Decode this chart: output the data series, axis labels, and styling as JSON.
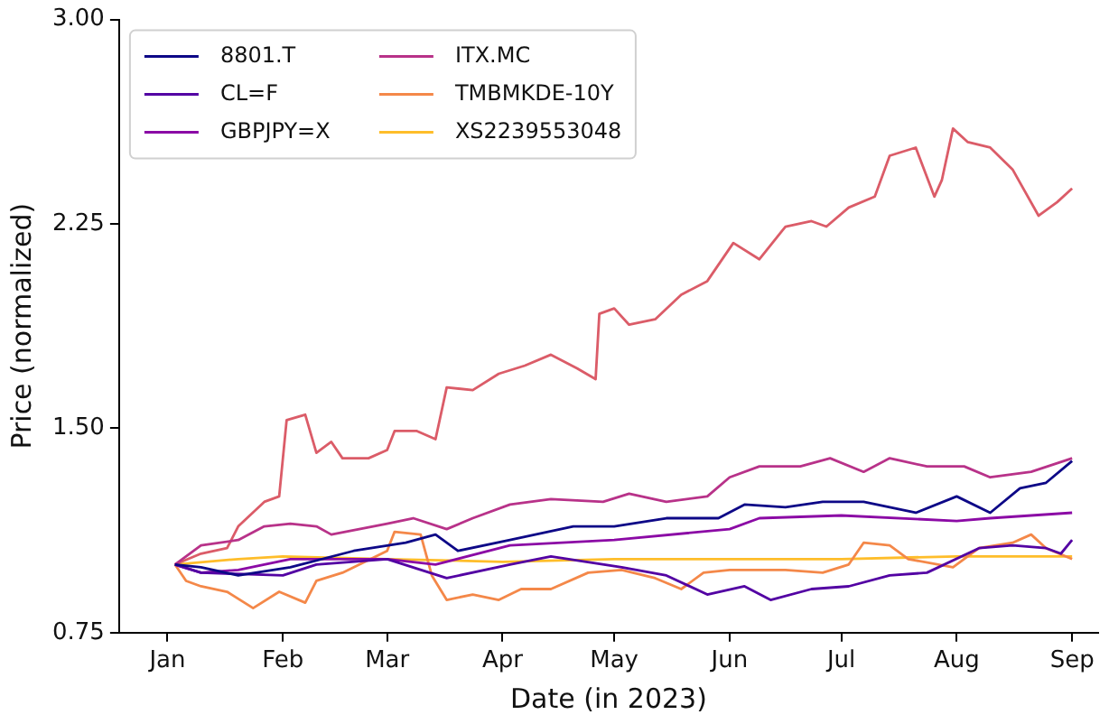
{
  "chart_data": {
    "type": "line",
    "xlabel": "Date (in 2023)",
    "ylabel": "Price (normalized)",
    "xlim": [
      "2022-12-19",
      "2023-09-08"
    ],
    "xticks": [
      {
        "value": "2023-01-01",
        "label": "Jan"
      },
      {
        "value": "2023-02-01",
        "label": "Feb"
      },
      {
        "value": "2023-03-01",
        "label": "Mar"
      },
      {
        "value": "2023-04-01",
        "label": "Apr"
      },
      {
        "value": "2023-05-01",
        "label": "May"
      },
      {
        "value": "2023-06-01",
        "label": "Jun"
      },
      {
        "value": "2023-07-01",
        "label": "Jul"
      },
      {
        "value": "2023-08-01",
        "label": "Aug"
      },
      {
        "value": "2023-09-01",
        "label": "Sep"
      }
    ],
    "ylim": [
      0.75,
      3.0
    ],
    "yticks": [
      {
        "value": 0.75,
        "label": "0.75"
      },
      {
        "value": 1.5,
        "label": "1.50"
      },
      {
        "value": 2.25,
        "label": "2.25"
      },
      {
        "value": 3.0,
        "label": "3.00"
      }
    ],
    "grid": false,
    "legend": "top left",
    "line_style": "solid",
    "marker": "none",
    "series": [
      {
        "name": "8801.T",
        "color": "#0d0887",
        "x": [
          "2023-01-03",
          "2023-01-10",
          "2023-01-20",
          "2023-02-03",
          "2023-02-20",
          "2023-03-06",
          "2023-03-14",
          "2023-03-20",
          "2023-04-03",
          "2023-04-20",
          "2023-05-01",
          "2023-05-15",
          "2023-05-29",
          "2023-06-05",
          "2023-06-16",
          "2023-06-26",
          "2023-07-07",
          "2023-07-21",
          "2023-08-01",
          "2023-08-10",
          "2023-08-18",
          "2023-08-25",
          "2023-09-01"
        ],
        "values": [
          1.0,
          0.99,
          0.96,
          0.99,
          1.05,
          1.08,
          1.11,
          1.05,
          1.09,
          1.14,
          1.14,
          1.17,
          1.17,
          1.22,
          1.21,
          1.23,
          1.23,
          1.19,
          1.25,
          1.19,
          1.28,
          1.3,
          1.38
        ]
      },
      {
        "name": "CL=F",
        "color": "#5302a3",
        "x": [
          "2023-01-03",
          "2023-01-10",
          "2023-02-01",
          "2023-02-10",
          "2023-03-01",
          "2023-03-17",
          "2023-04-03",
          "2023-04-14",
          "2023-05-03",
          "2023-05-15",
          "2023-05-26",
          "2023-06-05",
          "2023-06-12",
          "2023-06-23",
          "2023-07-03",
          "2023-07-14",
          "2023-07-24",
          "2023-08-07",
          "2023-08-16",
          "2023-08-25",
          "2023-08-29",
          "2023-09-01"
        ],
        "values": [
          1.0,
          0.97,
          0.96,
          1.0,
          1.02,
          0.95,
          1.0,
          1.03,
          0.99,
          0.96,
          0.89,
          0.92,
          0.87,
          0.91,
          0.92,
          0.96,
          0.97,
          1.06,
          1.07,
          1.06,
          1.04,
          1.09
        ]
      },
      {
        "name": "GBPJPY=X",
        "color": "#8b0aa5",
        "x": [
          "2023-01-03",
          "2023-01-10",
          "2023-01-20",
          "2023-02-03",
          "2023-03-01",
          "2023-03-14",
          "2023-04-03",
          "2023-05-01",
          "2023-06-01",
          "2023-06-09",
          "2023-07-01",
          "2023-08-01",
          "2023-08-10",
          "2023-09-01"
        ],
        "values": [
          1.0,
          0.97,
          0.98,
          1.02,
          1.02,
          1.0,
          1.07,
          1.09,
          1.13,
          1.17,
          1.18,
          1.16,
          1.17,
          1.19
        ]
      },
      {
        "name": "ITX.MC",
        "color": "#b83289",
        "x": [
          "2023-01-03",
          "2023-01-10",
          "2023-01-20",
          "2023-01-27",
          "2023-02-03",
          "2023-02-10",
          "2023-02-14",
          "2023-03-01",
          "2023-03-08",
          "2023-03-17",
          "2023-03-24",
          "2023-04-03",
          "2023-04-14",
          "2023-04-28",
          "2023-05-05",
          "2023-05-15",
          "2023-05-26",
          "2023-06-01",
          "2023-06-09",
          "2023-06-20",
          "2023-06-28",
          "2023-07-07",
          "2023-07-14",
          "2023-07-24",
          "2023-08-03",
          "2023-08-10",
          "2023-08-21",
          "2023-09-01"
        ],
        "values": [
          1.0,
          1.07,
          1.09,
          1.14,
          1.15,
          1.14,
          1.11,
          1.15,
          1.17,
          1.13,
          1.17,
          1.22,
          1.24,
          1.23,
          1.26,
          1.23,
          1.25,
          1.32,
          1.36,
          1.36,
          1.39,
          1.34,
          1.39,
          1.36,
          1.36,
          1.32,
          1.34,
          1.39
        ]
      },
      {
        "color": "#db5c68",
        "x": [
          "2023-01-03",
          "2023-01-10",
          "2023-01-17",
          "2023-01-20",
          "2023-01-27",
          "2023-01-31",
          "2023-02-02",
          "2023-02-07",
          "2023-02-10",
          "2023-02-14",
          "2023-02-17",
          "2023-02-24",
          "2023-03-01",
          "2023-03-03",
          "2023-03-09",
          "2023-03-14",
          "2023-03-17",
          "2023-03-24",
          "2023-03-31",
          "2023-04-07",
          "2023-04-14",
          "2023-04-21",
          "2023-04-26",
          "2023-04-27",
          "2023-05-01",
          "2023-05-05",
          "2023-05-12",
          "2023-05-19",
          "2023-05-26",
          "2023-06-02",
          "2023-06-09",
          "2023-06-16",
          "2023-06-23",
          "2023-06-27",
          "2023-07-03",
          "2023-07-10",
          "2023-07-14",
          "2023-07-21",
          "2023-07-26",
          "2023-07-28",
          "2023-07-31",
          "2023-08-04",
          "2023-08-10",
          "2023-08-16",
          "2023-08-23",
          "2023-08-28",
          "2023-09-01"
        ],
        "values": [
          1.0,
          1.04,
          1.06,
          1.14,
          1.23,
          1.25,
          1.53,
          1.55,
          1.41,
          1.45,
          1.39,
          1.39,
          1.42,
          1.49,
          1.49,
          1.46,
          1.65,
          1.64,
          1.7,
          1.73,
          1.77,
          1.72,
          1.68,
          1.92,
          1.94,
          1.88,
          1.9,
          1.99,
          2.04,
          2.18,
          2.12,
          2.24,
          2.26,
          2.24,
          2.31,
          2.35,
          2.5,
          2.53,
          2.35,
          2.41,
          2.6,
          2.55,
          2.53,
          2.45,
          2.28,
          2.33,
          2.38
        ]
      },
      {
        "name": "TMBMKDE-10Y",
        "color": "#f48849",
        "x": [
          "2023-01-03",
          "2023-01-06",
          "2023-01-10",
          "2023-01-17",
          "2023-01-24",
          "2023-01-31",
          "2023-02-07",
          "2023-02-10",
          "2023-02-17",
          "2023-03-01",
          "2023-03-03",
          "2023-03-10",
          "2023-03-13",
          "2023-03-17",
          "2023-03-24",
          "2023-03-31",
          "2023-04-06",
          "2023-04-14",
          "2023-04-24",
          "2023-05-03",
          "2023-05-12",
          "2023-05-19",
          "2023-05-25",
          "2023-06-01",
          "2023-06-09",
          "2023-06-16",
          "2023-06-26",
          "2023-07-03",
          "2023-07-07",
          "2023-07-14",
          "2023-07-19",
          "2023-07-31",
          "2023-08-07",
          "2023-08-16",
          "2023-08-21",
          "2023-08-25",
          "2023-09-01"
        ],
        "values": [
          1.0,
          0.94,
          0.92,
          0.9,
          0.84,
          0.9,
          0.86,
          0.94,
          0.97,
          1.05,
          1.12,
          1.11,
          0.96,
          0.87,
          0.89,
          0.87,
          0.91,
          0.91,
          0.97,
          0.98,
          0.95,
          0.91,
          0.97,
          0.98,
          0.98,
          0.98,
          0.97,
          1.0,
          1.08,
          1.07,
          1.02,
          0.99,
          1.06,
          1.08,
          1.11,
          1.06,
          1.02
        ]
      },
      {
        "name": "XS2239553048",
        "color": "#febd2a",
        "x": [
          "2023-01-03",
          "2023-01-20",
          "2023-02-01",
          "2023-03-01",
          "2023-04-01",
          "2023-05-01",
          "2023-06-01",
          "2023-07-01",
          "2023-08-01",
          "2023-09-01"
        ],
        "values": [
          1.0,
          1.02,
          1.03,
          1.02,
          1.01,
          1.02,
          1.02,
          1.02,
          1.03,
          1.03
        ]
      }
    ]
  }
}
